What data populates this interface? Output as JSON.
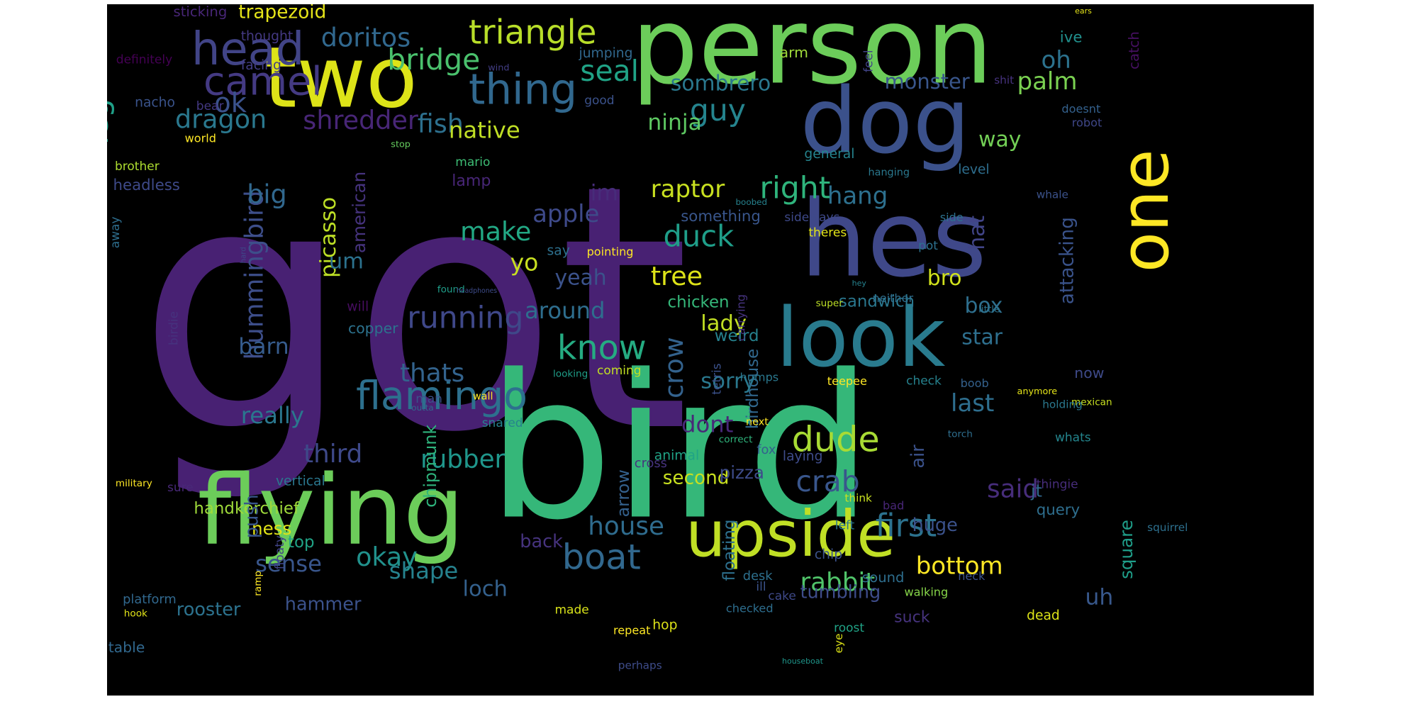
{
  "cloud": {
    "background": "#000000",
    "palette": "viridis",
    "words": [
      {
        "text": "got",
        "color": "#482173"
      },
      {
        "text": "bird",
        "color": "#35b779"
      },
      {
        "text": "person",
        "color": "#6ccd5a"
      },
      {
        "text": "hes",
        "color": "#3f4889"
      },
      {
        "text": "dog",
        "color": "#3b518b"
      },
      {
        "text": "two",
        "color": "#dde318"
      },
      {
        "text": "look",
        "color": "#297b8e"
      },
      {
        "text": "flying",
        "color": "#6ccd5a"
      },
      {
        "text": "one",
        "color": "#fde725"
      },
      {
        "text": "upside",
        "color": "#c0df25"
      },
      {
        "text": "head",
        "color": "#414487"
      },
      {
        "text": "camel",
        "color": "#443a83"
      },
      {
        "text": "thing",
        "color": "#31688e"
      },
      {
        "text": "triangle",
        "color": "#b8de29"
      },
      {
        "text": "doritos",
        "color": "#31688e"
      },
      {
        "text": "bridge",
        "color": "#4ac16d"
      },
      {
        "text": "seal",
        "color": "#20a386"
      },
      {
        "text": "palm",
        "color": "#7ad151"
      },
      {
        "text": "oh",
        "color": "#2c728e"
      },
      {
        "text": "leg",
        "color": "#1fa088"
      },
      {
        "text": "ok",
        "color": "#3b528b"
      },
      {
        "text": "dragon",
        "color": "#2a788e"
      },
      {
        "text": "shredder",
        "color": "#482677"
      },
      {
        "text": "fish",
        "color": "#2d708e"
      },
      {
        "text": "native",
        "color": "#c0df25"
      },
      {
        "text": "guy",
        "color": "#25848e"
      },
      {
        "text": "ninja",
        "color": "#5ec962"
      },
      {
        "text": "sombrero",
        "color": "#2a788e"
      },
      {
        "text": "monster",
        "color": "#39568c"
      },
      {
        "text": "way",
        "color": "#73d056"
      },
      {
        "text": "hummingbird",
        "color": "#3d4e8a"
      },
      {
        "text": "big",
        "color": "#31688e"
      },
      {
        "text": "picasso",
        "color": "#bddf26"
      },
      {
        "text": "american",
        "color": "#46337e"
      },
      {
        "text": "im",
        "color": "#472c7a"
      },
      {
        "text": "apple",
        "color": "#3e4a89"
      },
      {
        "text": "make",
        "color": "#22a884"
      },
      {
        "text": "raptor",
        "color": "#c8e020"
      },
      {
        "text": "right",
        "color": "#2fb47c"
      },
      {
        "text": "hang",
        "color": "#2d708e"
      },
      {
        "text": "duck",
        "color": "#1f9e89"
      },
      {
        "text": "hat",
        "color": "#414487"
      },
      {
        "text": "attacking",
        "color": "#3a538b"
      },
      {
        "text": "tree",
        "color": "#dde318"
      },
      {
        "text": "yeah",
        "color": "#3b528b"
      },
      {
        "text": "yo",
        "color": "#c8e020"
      },
      {
        "text": "um",
        "color": "#2c728e"
      },
      {
        "text": "running",
        "color": "#3f4889"
      },
      {
        "text": "know",
        "color": "#25ac82"
      },
      {
        "text": "around",
        "color": "#2e6e8e"
      },
      {
        "text": "lady",
        "color": "#c2df23"
      },
      {
        "text": "bro",
        "color": "#d0e11c"
      },
      {
        "text": "box",
        "color": "#2e6f8e"
      },
      {
        "text": "flamingo",
        "color": "#2d708e"
      },
      {
        "text": "dude",
        "color": "#a8db34"
      },
      {
        "text": "barn",
        "color": "#365c8d"
      },
      {
        "text": "thats",
        "color": "#33638d"
      },
      {
        "text": "really",
        "color": "#2a778e"
      },
      {
        "text": "third",
        "color": "#3e4989"
      },
      {
        "text": "rubber",
        "color": "#1f968b"
      },
      {
        "text": "crow",
        "color": "#33628d"
      },
      {
        "text": "sorry",
        "color": "#2a788e"
      },
      {
        "text": "dont",
        "color": "#482878"
      },
      {
        "text": "crab",
        "color": "#39568c"
      },
      {
        "text": "first",
        "color": "#2c728e"
      },
      {
        "text": "said",
        "color": "#472d7b"
      },
      {
        "text": "last",
        "color": "#2e6e8e"
      },
      {
        "text": "star",
        "color": "#2e6f8e"
      },
      {
        "text": "house",
        "color": "#2f6c8e"
      },
      {
        "text": "boat",
        "color": "#31688e"
      },
      {
        "text": "okay",
        "color": "#21918c"
      },
      {
        "text": "sense",
        "color": "#39568c"
      },
      {
        "text": "shape",
        "color": "#26828e"
      },
      {
        "text": "bottom",
        "color": "#fde725"
      },
      {
        "text": "rabbit",
        "color": "#50c46a"
      },
      {
        "text": "loch",
        "color": "#34618d"
      },
      {
        "text": "uh",
        "color": "#38588c"
      },
      {
        "text": "tumbling",
        "color": "#3e4c8a"
      },
      {
        "text": "rooster",
        "color": "#2c728e"
      },
      {
        "text": "hammer",
        "color": "#3b528b"
      },
      {
        "text": "ness",
        "color": "#e2e418"
      },
      {
        "text": "handkerchief",
        "color": "#9fda3a"
      },
      {
        "text": "chipmunk",
        "color": "#2eb37c"
      },
      {
        "text": "birdhouse",
        "color": "#31688e"
      },
      {
        "text": "sandwich",
        "color": "#2a778e"
      },
      {
        "text": "weird",
        "color": "#26828e"
      },
      {
        "text": "second",
        "color": "#c8e020"
      },
      {
        "text": "pizza",
        "color": "#3e4c8a"
      },
      {
        "text": "push",
        "color": "#39568c"
      },
      {
        "text": "top",
        "color": "#20a386"
      },
      {
        "text": "back",
        "color": "#46337e"
      },
      {
        "text": "huge",
        "color": "#3b528b"
      },
      {
        "text": "square",
        "color": "#1f9e89"
      },
      {
        "text": "arrow",
        "color": "#34618d"
      },
      {
        "text": "floating",
        "color": "#2d708e"
      },
      {
        "text": "sticking",
        "color": "#482677"
      },
      {
        "text": "trapezoid",
        "color": "#e5e419"
      },
      {
        "text": "thought",
        "color": "#443983"
      },
      {
        "text": "definitely",
        "color": "#440154"
      },
      {
        "text": "facing",
        "color": "#433e85"
      },
      {
        "text": "nacho",
        "color": "#3a538b"
      },
      {
        "text": "jumping",
        "color": "#31688e"
      },
      {
        "text": "arm",
        "color": "#9fda3a"
      },
      {
        "text": "wind",
        "color": "#433e85"
      },
      {
        "text": "catch",
        "color": "#471063"
      },
      {
        "text": "ears",
        "color": "#e5e419"
      },
      {
        "text": "ive",
        "color": "#21908d"
      },
      {
        "text": "feel",
        "color": "#414487"
      },
      {
        "text": "shit",
        "color": "#46327e"
      },
      {
        "text": "bear",
        "color": "#443983"
      },
      {
        "text": "good",
        "color": "#3b528b"
      },
      {
        "text": "doesnt",
        "color": "#34618d"
      },
      {
        "text": "robot",
        "color": "#3f4788"
      },
      {
        "text": "world",
        "color": "#fde725"
      },
      {
        "text": "stop",
        "color": "#65cb5e"
      },
      {
        "text": "general",
        "color": "#25848e"
      },
      {
        "text": "level",
        "color": "#2e6e8e"
      },
      {
        "text": "hanging",
        "color": "#2a788e"
      },
      {
        "text": "brother",
        "color": "#addc30"
      },
      {
        "text": "headless",
        "color": "#3e4a89"
      },
      {
        "text": "mario",
        "color": "#3dbc74"
      },
      {
        "text": "lamp",
        "color": "#482677"
      },
      {
        "text": "boobed",
        "color": "#26828e"
      },
      {
        "text": "whale",
        "color": "#3b528b"
      },
      {
        "text": "something",
        "color": "#39568c"
      },
      {
        "text": "sideways",
        "color": "#3e4989"
      },
      {
        "text": "theres",
        "color": "#e2e418"
      },
      {
        "text": "side",
        "color": "#2d718e"
      },
      {
        "text": "pot",
        "color": "#2d708e"
      },
      {
        "text": "away",
        "color": "#2e6e8e"
      },
      {
        "text": "hard",
        "color": "#3f4788"
      },
      {
        "text": "birdie",
        "color": "#46327e"
      },
      {
        "text": "pointing",
        "color": "#fde725"
      },
      {
        "text": "say",
        "color": "#2d708e"
      },
      {
        "text": "hey",
        "color": "#26828e"
      },
      {
        "text": "found",
        "color": "#1f9e89"
      },
      {
        "text": "headphones",
        "color": "#3e4c8a"
      },
      {
        "text": "will",
        "color": "#470d60"
      },
      {
        "text": "copper",
        "color": "#2c728e"
      },
      {
        "text": "super",
        "color": "#bddf26"
      },
      {
        "text": "chicken",
        "color": "#35b779"
      },
      {
        "text": "neither",
        "color": "#2e6e8e"
      },
      {
        "text": "carrying",
        "color": "#46337e"
      },
      {
        "text": "little",
        "color": "#2c738e"
      },
      {
        "text": "humps",
        "color": "#2a788e"
      },
      {
        "text": "teepee",
        "color": "#fde725"
      },
      {
        "text": "check",
        "color": "#26828e"
      },
      {
        "text": "boob",
        "color": "#34618d"
      },
      {
        "text": "now",
        "color": "#3e4a89"
      },
      {
        "text": "next",
        "color": "#fde725"
      },
      {
        "text": "coming",
        "color": "#c2df23"
      },
      {
        "text": "looking",
        "color": "#1f9e89"
      },
      {
        "text": "anymore",
        "color": "#e5e419"
      },
      {
        "text": "tetris",
        "color": "#3b518b"
      },
      {
        "text": "mexican",
        "color": "#c8e020"
      },
      {
        "text": "man",
        "color": "#3b518b"
      },
      {
        "text": "outta",
        "color": "#31688e"
      },
      {
        "text": "wall",
        "color": "#fde725"
      },
      {
        "text": "snared",
        "color": "#26828e"
      },
      {
        "text": "holding",
        "color": "#2a788e"
      },
      {
        "text": "torch",
        "color": "#2e6e8e"
      },
      {
        "text": "fox",
        "color": "#34618d"
      },
      {
        "text": "animal",
        "color": "#20a386"
      },
      {
        "text": "laying",
        "color": "#3e4c8a"
      },
      {
        "text": "whats",
        "color": "#24868e"
      },
      {
        "text": "vertical",
        "color": "#2a778e"
      },
      {
        "text": "military",
        "color": "#fde725"
      },
      {
        "text": "sure",
        "color": "#482878"
      },
      {
        "text": "cross",
        "color": "#46337e"
      },
      {
        "text": "correct",
        "color": "#2fb47c"
      },
      {
        "text": "air",
        "color": "#3b528b"
      },
      {
        "text": "thingie",
        "color": "#472d7b"
      },
      {
        "text": "jt",
        "color": "#31688e"
      },
      {
        "text": "query",
        "color": "#2e6e8e"
      },
      {
        "text": "bad",
        "color": "#482677"
      },
      {
        "text": "think",
        "color": "#c8e020"
      },
      {
        "text": "floaty",
        "color": "#414487"
      },
      {
        "text": "ramp",
        "color": "#fde725"
      },
      {
        "text": "left",
        "color": "#2a788e"
      },
      {
        "text": "squirrel",
        "color": "#2d708e"
      },
      {
        "text": "chip",
        "color": "#3b528b"
      },
      {
        "text": "desk",
        "color": "#2d708e"
      },
      {
        "text": "sound",
        "color": "#2e6e8e"
      },
      {
        "text": "platform",
        "color": "#31688e"
      },
      {
        "text": "hook",
        "color": "#e2e418"
      },
      {
        "text": "walking",
        "color": "#86d549"
      },
      {
        "text": "neck",
        "color": "#3b528b"
      },
      {
        "text": "dead",
        "color": "#dde318"
      },
      {
        "text": "suck",
        "color": "#46337e"
      },
      {
        "text": "roost",
        "color": "#20a386"
      },
      {
        "text": "made",
        "color": "#d8e219"
      },
      {
        "text": "hop",
        "color": "#dde318"
      },
      {
        "text": "repeat",
        "color": "#fde725"
      },
      {
        "text": "checked",
        "color": "#2e6e8e"
      },
      {
        "text": "eye",
        "color": "#dde318"
      },
      {
        "text": "ill",
        "color": "#3b528b"
      },
      {
        "text": "perhaps",
        "color": "#3e4c8a"
      },
      {
        "text": "table",
        "color": "#31688e"
      },
      {
        "text": "cake",
        "color": "#3e4989"
      },
      {
        "text": "houseboat",
        "color": "#1f968b"
      }
    ]
  }
}
